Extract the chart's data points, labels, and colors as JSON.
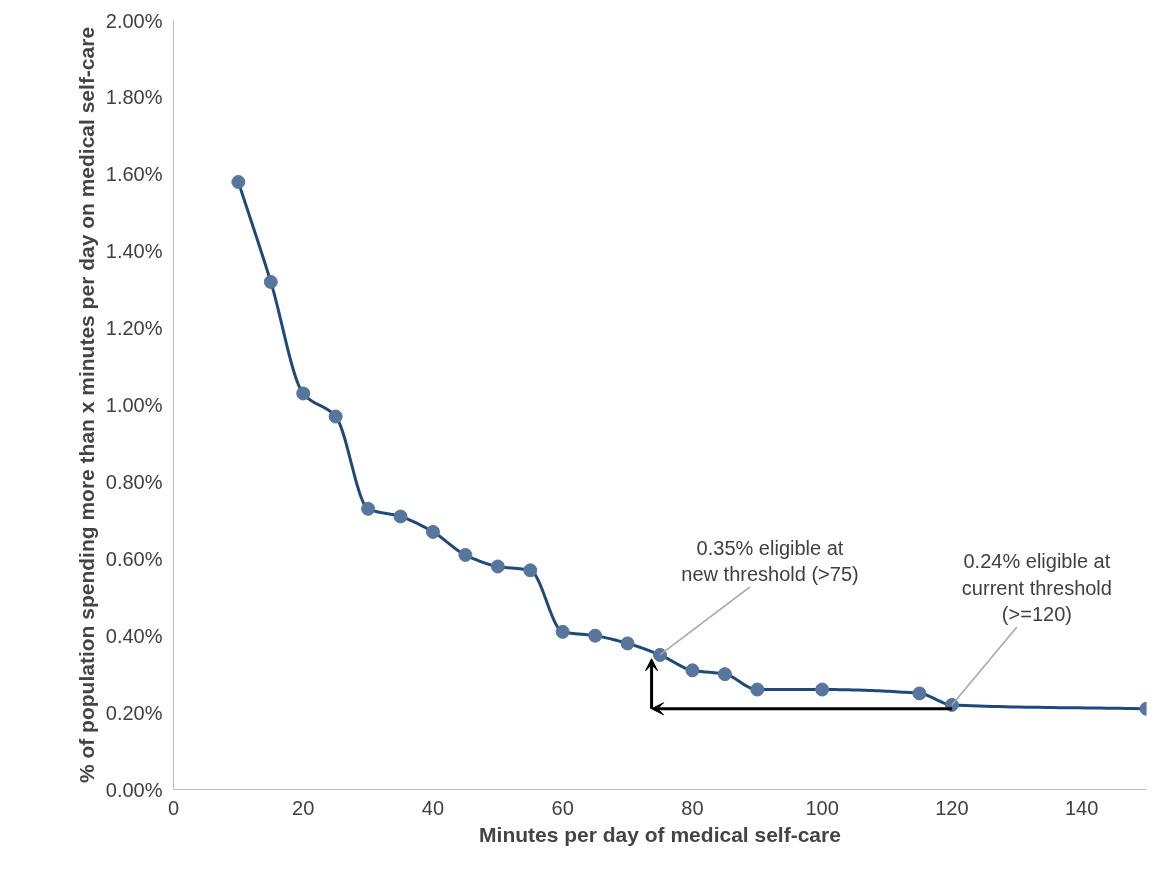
{
  "chart_data": {
    "type": "line",
    "xlabel": "Minutes per day of medical self-care",
    "ylabel": "% of population spending more than x minutes per day on medical self-care",
    "x": [
      10,
      15,
      20,
      25,
      30,
      35,
      40,
      45,
      50,
      55,
      60,
      65,
      70,
      75,
      80,
      85,
      90,
      100,
      115,
      120,
      150
    ],
    "series": [
      {
        "color": "#1f497d",
        "values": [
          1.58,
          1.32,
          1.03,
          0.97,
          0.73,
          0.71,
          0.67,
          0.61,
          0.58,
          0.57,
          0.41,
          0.4,
          0.38,
          0.35,
          0.31,
          0.3,
          0.26,
          0.26,
          0.25,
          0.22,
          0.21
        ]
      }
    ],
    "marker": "circle",
    "line_style": "solid",
    "xlim": [
      0,
      150
    ],
    "xticks": [
      0,
      20,
      40,
      60,
      80,
      100,
      120,
      140
    ],
    "ylim": [
      0,
      2
    ],
    "yticks": [
      {
        "value": 0,
        "label": "0.00%"
      },
      {
        "value": 0.2,
        "label": "0.20%"
      },
      {
        "value": 0.4,
        "label": "0.40%"
      },
      {
        "value": 0.6,
        "label": "0.60%"
      },
      {
        "value": 0.8,
        "label": "0.80%"
      },
      {
        "value": 1.0,
        "label": "1.00%"
      },
      {
        "value": 1.2,
        "label": "1.20%"
      },
      {
        "value": 1.4,
        "label": "1.40%"
      },
      {
        "value": 1.6,
        "label": "1.60%"
      },
      {
        "value": 1.8,
        "label": "1.80%"
      },
      {
        "value": 2.0,
        "label": "2.00%"
      }
    ],
    "annotations": [
      {
        "text": "0.35% eligible at\nnew threshold (>75)",
        "x": 75,
        "y": 0.35
      },
      {
        "text": "0.24% eligible at\ncurrent threshold\n(>=120)",
        "x": 120,
        "y": 0.22
      }
    ]
  }
}
